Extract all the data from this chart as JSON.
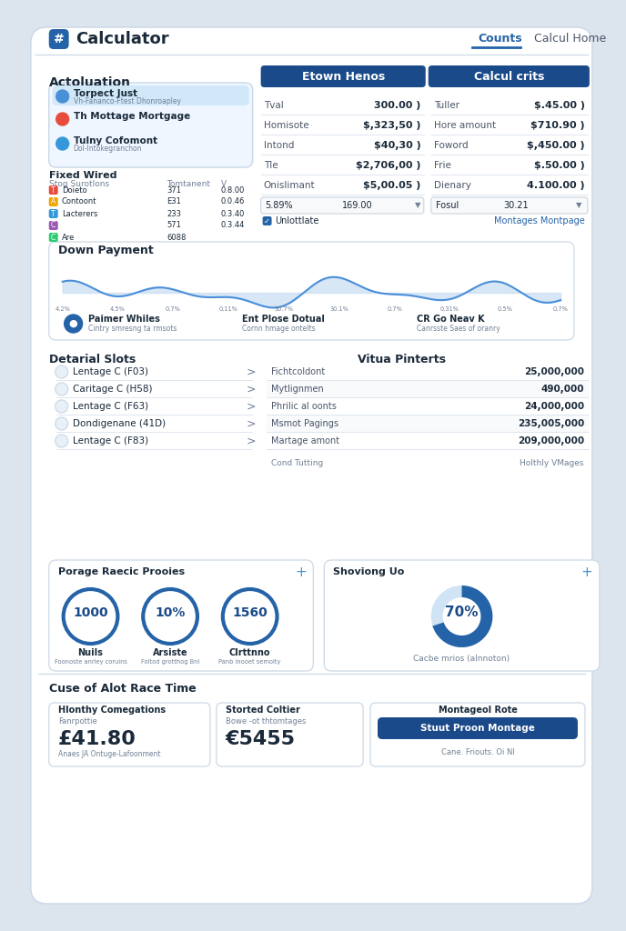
{
  "bg_color": "#dce4ed",
  "card_bg": "#ffffff",
  "title": "Calculator",
  "nav_tabs": [
    "Counts",
    "Calcul Home"
  ],
  "section_actuation": "Actoluation",
  "loan_types": [
    {
      "label": "Torpect Just",
      "sub": "Vh-Fananco-Ftest Dhonroapley",
      "color": "#4a90d9",
      "selected": true
    },
    {
      "label": "Th Mottage Mortgage",
      "color": "#e74c3c"
    },
    {
      "label": "Tulny Cofomont",
      "sub": "Dol-Intokegranchon",
      "color": "#3498db"
    }
  ],
  "fixed_wired_title": "Fixed Wired",
  "fixed_wired_cols": [
    "Stog Surotlons",
    "Tomtanent",
    "V"
  ],
  "fixed_wired_rows": [
    {
      "icon": "T",
      "col1": "Doieto",
      "col2": "371",
      "col3": "0.8.00"
    },
    {
      "icon": "A",
      "col1": "Contoont",
      "col2": "E31",
      "col3": "0.0.46"
    },
    {
      "icon": "T",
      "col1": "Lacterers",
      "col2": "233",
      "col3": "0.3.40"
    },
    {
      "icon": "C",
      "col1": "",
      "col2": "571",
      "col3": "0.3.44"
    },
    {
      "icon": "C",
      "col1": "Are",
      "col2": "6088",
      "col3": ""
    }
  ],
  "header_left": "Etown Henos",
  "header_right": "Calcul crits",
  "left_fields": [
    {
      "label": "Tval",
      "value": "300.00 )"
    },
    {
      "label": "Homisote",
      "value": "$,323,50 )"
    },
    {
      "label": "Intond",
      "value": "$40,30 )"
    },
    {
      "label": "Tle",
      "value": "$2,706,00 )"
    },
    {
      "label": "Onislimant",
      "value": "$5,00.05 )"
    },
    {
      "label": "5.89%",
      "value": "169.00",
      "is_input": true
    }
  ],
  "left_checkbox": "Unlottlate",
  "right_fields": [
    {
      "label": "Tuller",
      "value": "$.45.00 )"
    },
    {
      "label": "Hore amount",
      "value": "$710.90 )"
    },
    {
      "label": "Foword",
      "value": "$,450.00 )"
    },
    {
      "label": "Frie",
      "value": "$.50.00 )"
    },
    {
      "label": "Dienary",
      "value": "4.100.00 )"
    },
    {
      "label": "Fosul",
      "value": "30.21",
      "is_input": true
    }
  ],
  "right_link": "Montages Montpage",
  "down_payment_title": "Down Payment",
  "detail_slots_title": "Detarial Slots",
  "detail_slots": [
    "Lentage C (F03)",
    "Caritage C (H58)",
    "Lentage C (F63)",
    "Dondigenane (41D)",
    "Lentage C (F83)"
  ],
  "value_partners_title": "Vitua Pinterts",
  "value_partners": [
    {
      "label": "Fichtcoldont",
      "value": "25,000,000"
    },
    {
      "label": "Mytlignmen",
      "value": "490,000"
    },
    {
      "label": "Phrilic al oonts",
      "value": "24,000,000"
    },
    {
      "label": "Msmot Pagings",
      "value": "235,005,000"
    },
    {
      "label": "Martage amont",
      "value": "209,000,000"
    }
  ],
  "value_partners_footer_left": "Cond Tutting",
  "value_partners_footer_right": "Holthly VMages",
  "proage_title": "Porage Raecic Prooies",
  "proage_items": [
    {
      "value": "1000",
      "label": "Nuils",
      "sub": "Foonoste anrley coruins"
    },
    {
      "value": "10%",
      "label": "Arsiste",
      "sub": "Foltod grotthog Bnl"
    },
    {
      "value": "1560",
      "label": "Clrttnno",
      "sub": "Panb inooet semolty"
    }
  ],
  "showing_title": "Shoviong Uo",
  "donut_pct": 70,
  "donut_label": "Cacbe mrios (alnnoton)",
  "bottom_title": "Cuse of Alot Race Time",
  "monthly_label": "Hlonthy Comegations",
  "monthly_sub": "Fanrpottie",
  "monthly_val": "£41.80",
  "monthly_desc": "Anaes JA Ontuge-Lafoonment",
  "started_label": "Storted Coltier",
  "started_sub": "Bowe -ot thtomtages",
  "started_val": "€5455",
  "cta_label": "Montageol Rote",
  "cta_button": "Stuut Proon Montage",
  "cta_sub": "Cane. Friouts. Oi Nl",
  "blue_dark": "#1a4a8a",
  "blue_mid": "#2563a8",
  "blue_light": "#4a90d9",
  "blue_accent": "#3b82f6",
  "text_dark": "#1a2a3a",
  "text_mid": "#4a5568",
  "text_light": "#718096",
  "border_color": "#d1dce8"
}
